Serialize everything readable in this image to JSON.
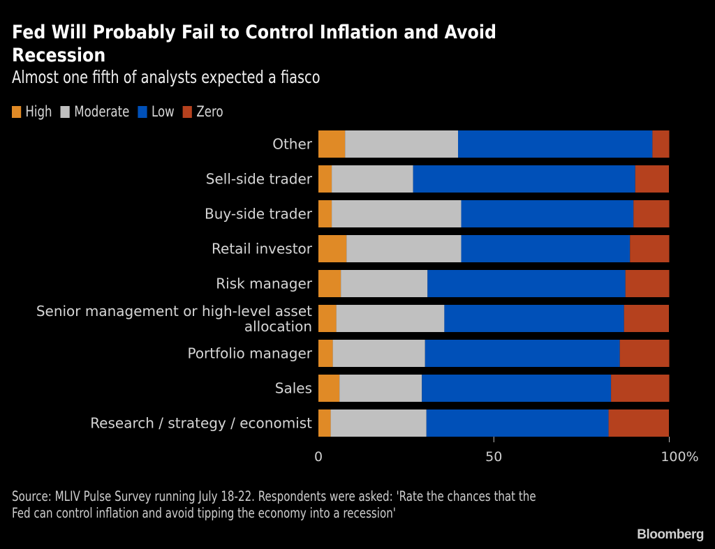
{
  "header": {
    "title": "Fed Will Probably Fail to Control Inflation and Avoid Recession",
    "subtitle": "Almost one fifth of analysts expected a fiasco"
  },
  "footer": {
    "source": "Source: MLIV Pulse Survey running July 18-22. Respondents were asked: 'Rate the chances that the Fed can control inflation and avoid tipping the economy into a recession'",
    "brand": "Bloomberg"
  },
  "chart_data": {
    "type": "bar",
    "orientation": "horizontal",
    "stacked": true,
    "title": "Fed Will Probably Fail to Control Inflation and Avoid Recession",
    "subtitle": "Almost one fifth of analysts expected a fiasco",
    "xlabel": "",
    "ylabel": "",
    "xlim": [
      0,
      100
    ],
    "x_ticks": [
      0,
      50,
      100
    ],
    "x_tick_labels": [
      "0",
      "50",
      "100%"
    ],
    "grid": false,
    "legend_position": "top-left",
    "categories": [
      "Other",
      "Sell-side trader",
      "Buy-side trader",
      "Retail investor",
      "Risk manager",
      "Senior management or high-level asset allocation",
      "Portfolio manager",
      "Sales",
      "Research / strategy / economist"
    ],
    "series": [
      {
        "name": "High",
        "color": "#E08A26",
        "values": [
          7.6,
          3.8,
          3.8,
          8.0,
          6.4,
          5.1,
          4.1,
          6.0,
          3.5
        ]
      },
      {
        "name": "Moderate",
        "color": "#C0C0C0",
        "values": [
          32.2,
          23.2,
          36.9,
          32.7,
          24.7,
          30.8,
          26.3,
          23.5,
          27.3
        ]
      },
      {
        "name": "Low",
        "color": "#0050B8",
        "values": [
          55.4,
          63.3,
          49.1,
          48.1,
          56.4,
          51.2,
          55.5,
          53.9,
          51.9
        ]
      },
      {
        "name": "Zero",
        "color": "#B5411E",
        "values": [
          4.8,
          9.6,
          10.2,
          11.2,
          12.5,
          12.8,
          14.1,
          16.6,
          17.2
        ]
      }
    ]
  }
}
